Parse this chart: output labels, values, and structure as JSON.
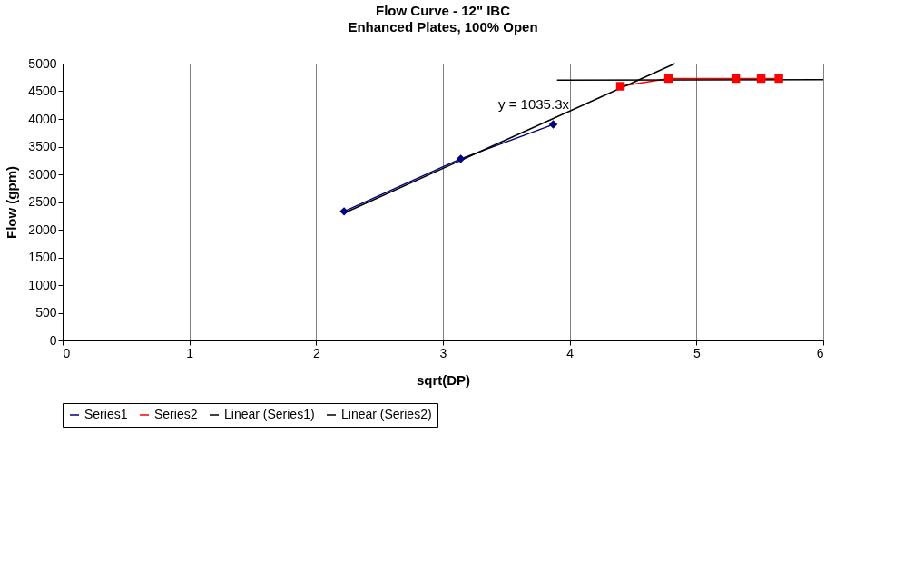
{
  "chart_data": {
    "type": "line",
    "title": "Flow Curve - 12\" IBC",
    "subtitle": "Enhanced Plates, 100% Open",
    "xlabel": "sqrt(DP)",
    "ylabel": "Flow (gpm)",
    "xlim": [
      0,
      6
    ],
    "xticks": [
      0,
      1,
      2,
      3,
      4,
      5,
      6
    ],
    "ylim": [
      0,
      5000
    ],
    "yticks": [
      0,
      500,
      1000,
      1500,
      2000,
      2500,
      3000,
      3500,
      4000,
      4500,
      5000
    ],
    "grid": "x",
    "legend": "bottom",
    "line_style": "solid",
    "series": [
      {
        "name": "Series1",
        "color": "#000080",
        "marker": "diamond",
        "x": [
          2.22,
          3.14,
          3.87
        ],
        "values": [
          2330,
          3280,
          3900
        ]
      },
      {
        "name": "Series2",
        "color": "#ff0000",
        "marker": "square",
        "x": [
          4.4,
          4.78,
          5.31,
          5.51,
          5.65
        ],
        "values": [
          4590,
          4730,
          4730,
          4730,
          4730
        ]
      },
      {
        "name": "Linear (Series1)",
        "color": "#000000",
        "marker": "none",
        "x": [
          2.22,
          4.83
        ],
        "values": [
          2300,
          5000
        ]
      },
      {
        "name": "Linear (Series2)",
        "color": "#000000",
        "marker": "none",
        "x": [
          3.9,
          6.0
        ],
        "values": [
          4700,
          4710
        ]
      }
    ],
    "annotations": [
      "y = 1035.3x"
    ]
  }
}
